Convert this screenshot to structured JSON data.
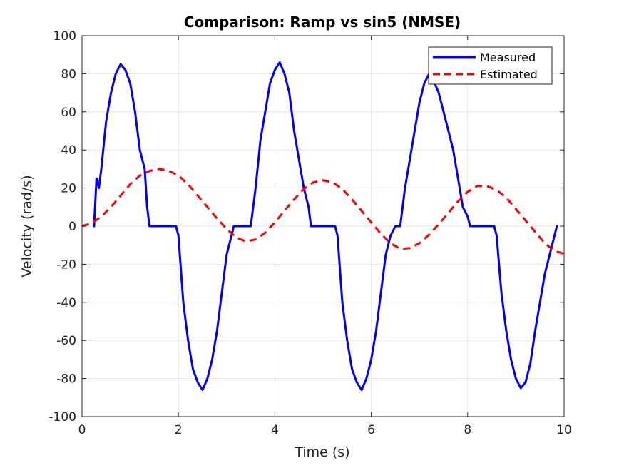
{
  "chart_data": {
    "type": "line",
    "title": "Comparison: Ramp vs sin5 (NMSE)",
    "xlabel": "Time (s)",
    "ylabel": "Velocity (rad/s)",
    "xlim": [
      0,
      10
    ],
    "ylim": [
      -100,
      100
    ],
    "xticks": [
      0,
      2,
      4,
      6,
      8,
      10
    ],
    "yticks": [
      -100,
      -80,
      -60,
      -40,
      -20,
      0,
      20,
      40,
      60,
      80,
      100
    ],
    "grid": true,
    "legend_position": "top-right",
    "series": [
      {
        "name": "Measured",
        "color": "#0000ff",
        "style": "solid",
        "x": [
          0.25,
          0.3,
          0.35,
          0.4,
          0.5,
          0.6,
          0.7,
          0.8,
          0.9,
          1.0,
          1.1,
          1.2,
          1.3,
          1.35,
          1.4,
          1.45,
          1.9,
          1.95,
          2.0,
          2.1,
          2.2,
          2.3,
          2.4,
          2.5,
          2.6,
          2.7,
          2.8,
          2.9,
          3.0,
          3.1,
          3.15,
          3.2,
          3.3,
          3.4,
          3.5,
          3.6,
          3.7,
          3.8,
          3.9,
          4.0,
          4.1,
          4.2,
          4.3,
          4.4,
          4.5,
          4.6,
          4.7,
          4.75,
          4.8,
          4.85,
          5.25,
          5.3,
          5.4,
          5.5,
          5.6,
          5.7,
          5.8,
          5.9,
          6.0,
          6.1,
          6.2,
          6.3,
          6.4,
          6.5,
          6.55,
          6.6,
          6.7,
          6.8,
          6.9,
          7.0,
          7.1,
          7.2,
          7.3,
          7.4,
          7.5,
          7.6,
          7.7,
          7.8,
          7.9,
          8.0,
          8.05,
          8.1,
          8.15,
          8.55,
          8.6,
          8.7,
          8.8,
          8.9,
          9.0,
          9.1,
          9.2,
          9.3,
          9.4,
          9.5,
          9.6,
          9.7,
          9.8,
          9.85
        ],
        "y": [
          0,
          25,
          20,
          30,
          55,
          70,
          80,
          85,
          82,
          75,
          60,
          40,
          30,
          10,
          0,
          0,
          0,
          0,
          -5,
          -40,
          -60,
          -75,
          -82,
          -86,
          -80,
          -70,
          -55,
          -35,
          -15,
          -5,
          0,
          0,
          0,
          0,
          0,
          20,
          45,
          60,
          75,
          82,
          86,
          80,
          70,
          50,
          35,
          20,
          10,
          0,
          0,
          0,
          0,
          -5,
          -40,
          -60,
          -75,
          -82,
          -86,
          -80,
          -70,
          -55,
          -35,
          -15,
          -5,
          0,
          0,
          0,
          20,
          35,
          50,
          65,
          75,
          80,
          76,
          70,
          60,
          50,
          40,
          25,
          10,
          5,
          0,
          0,
          0,
          0,
          -5,
          -35,
          -55,
          -70,
          -80,
          -85,
          -82,
          -72,
          -55,
          -40,
          -25,
          -15,
          -5,
          0
        ]
      },
      {
        "name": "Estimated",
        "color": "#ff0000",
        "style": "dashed",
        "x": [
          0,
          0.2,
          0.4,
          0.6,
          0.8,
          1.0,
          1.2,
          1.4,
          1.6,
          1.8,
          2.0,
          2.2,
          2.4,
          2.6,
          2.8,
          3.0,
          3.2,
          3.4,
          3.6,
          3.8,
          4.0,
          4.2,
          4.4,
          4.6,
          4.8,
          5.0,
          5.2,
          5.4,
          5.6,
          5.8,
          6.0,
          6.2,
          6.4,
          6.6,
          6.8,
          7.0,
          7.2,
          7.4,
          7.6,
          7.8,
          8.0,
          8.2,
          8.4,
          8.6,
          8.8,
          9.0,
          9.2,
          9.4,
          9.6,
          9.8,
          10.0
        ],
        "y": [
          0,
          1.5,
          5,
          10,
          16,
          22,
          26.5,
          29,
          30,
          29,
          26.5,
          22,
          16,
          10,
          4,
          -1.5,
          -6,
          -8,
          -7,
          -3.5,
          2,
          8,
          14,
          19.5,
          23,
          24,
          23,
          19.5,
          14,
          8,
          2,
          -4,
          -9,
          -12,
          -11.5,
          -9,
          -4.5,
          1,
          7,
          13,
          18,
          21,
          21,
          19,
          15,
          9,
          3,
          -3,
          -9,
          -13,
          -14.5
        ]
      }
    ]
  }
}
